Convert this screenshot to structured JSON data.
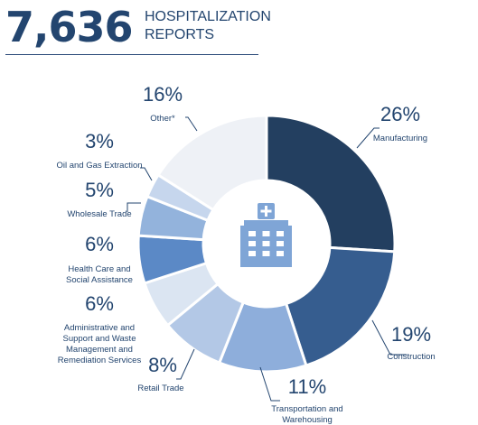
{
  "header": {
    "number": "7,636",
    "line1": "HOSPITALIZATION",
    "line2": "REPORTS"
  },
  "chart_data": {
    "type": "pie",
    "donut": true,
    "center_icon": "hospital-building-icon",
    "slices": [
      {
        "pct": "26%",
        "value": 26,
        "label_lines": [
          "Manufacturing"
        ],
        "color": "#233f60"
      },
      {
        "pct": "19%",
        "value": 19,
        "label_lines": [
          "Construction"
        ],
        "color": "#365d8f"
      },
      {
        "pct": "11%",
        "value": 11,
        "label_lines": [
          "Transportation and",
          "Warehousing"
        ],
        "color": "#8eaedb"
      },
      {
        "pct": "8%",
        "value": 8,
        "label_lines": [
          "Retail Trade"
        ],
        "color": "#b3c8e6"
      },
      {
        "pct": "6%",
        "value": 6,
        "label_lines": [
          "Administrative and",
          "Support and Waste",
          "Management and",
          "Remediation Services"
        ],
        "color": "#dbe5f2"
      },
      {
        "pct": "6%",
        "value": 6,
        "label_lines": [
          "Health Care and",
          "Social Assistance"
        ],
        "color": "#5b89c6"
      },
      {
        "pct": "5%",
        "value": 5,
        "label_lines": [
          "Wholesale Trade"
        ],
        "color": "#93b3dc"
      },
      {
        "pct": "3%",
        "value": 3,
        "label_lines": [
          "Oil and Gas Extraction"
        ],
        "color": "#c6d6ed"
      },
      {
        "pct": "16%",
        "value": 16,
        "label_lines": [
          "Other*"
        ],
        "color": "#eef1f6"
      }
    ],
    "label_color": "#23456f"
  }
}
